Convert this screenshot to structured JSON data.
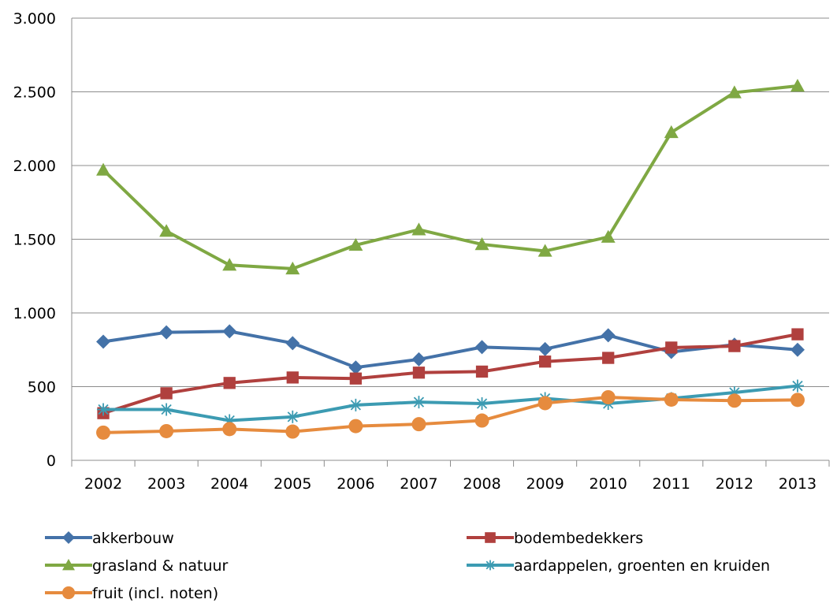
{
  "chart_data": {
    "type": "line",
    "title": "",
    "xlabel": "",
    "ylabel": "",
    "categories": [
      "2002",
      "2003",
      "2004",
      "2005",
      "2006",
      "2007",
      "2008",
      "2009",
      "2010",
      "2011",
      "2012",
      "2013"
    ],
    "ylim": [
      0,
      3000
    ],
    "y_ticks": [
      0,
      500,
      1000,
      1500,
      2000,
      2500,
      3000
    ],
    "y_tick_labels": [
      "0",
      "500",
      "1.000",
      "1.500",
      "2.000",
      "2.500",
      "3.000"
    ],
    "grid": "horizontal",
    "legend_position": "bottom",
    "series": [
      {
        "name": "akkerbouw",
        "color": "#4472A8",
        "marker": "diamond",
        "values": [
          805,
          868,
          875,
          795,
          630,
          685,
          768,
          755,
          848,
          735,
          785,
          750
        ]
      },
      {
        "name": "bodembedekkers",
        "color": "#B0403E",
        "marker": "square",
        "values": [
          320,
          455,
          525,
          562,
          555,
          595,
          602,
          670,
          695,
          765,
          775,
          855
        ]
      },
      {
        "name": "grasland & natuur",
        "color": "#7FA843",
        "marker": "triangle",
        "values": [
          1970,
          1555,
          1325,
          1300,
          1460,
          1565,
          1465,
          1420,
          1515,
          2225,
          2495,
          2540
        ]
      },
      {
        "name": "aardappelen, groenten en kruiden",
        "color": "#3C9BB2",
        "marker": "asterisk",
        "values": [
          345,
          345,
          270,
          295,
          375,
          395,
          385,
          420,
          385,
          420,
          460,
          505
        ]
      },
      {
        "name": "fruit (incl. noten)",
        "color": "#E68B3E",
        "marker": "circle",
        "values": [
          188,
          198,
          212,
          195,
          232,
          245,
          270,
          388,
          428,
          412,
          405,
          410
        ]
      }
    ]
  }
}
